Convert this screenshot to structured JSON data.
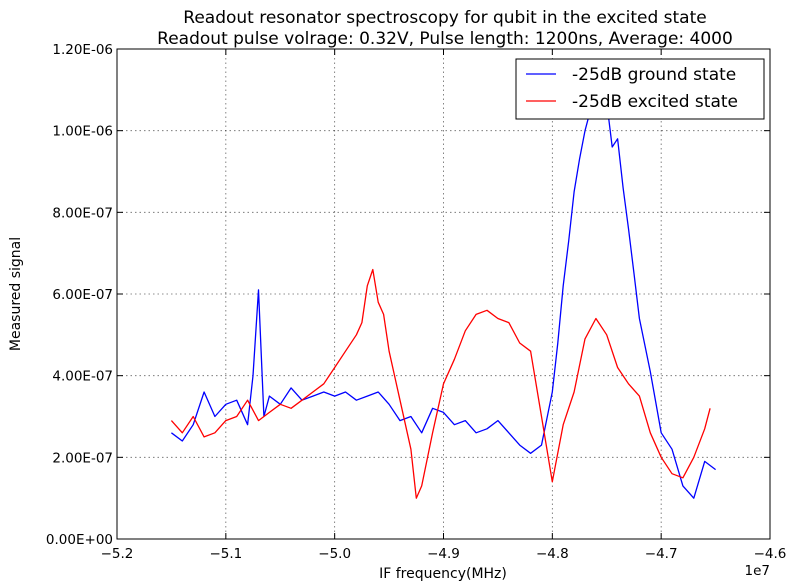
{
  "chart_data": {
    "type": "line",
    "title": "Readout resonator spectroscopy for qubit in the excited state",
    "subtitle": "Readout pulse volrage: 0.32V, Pulse length: 1200ns, Average: 4000",
    "xlabel": "IF frequency(MHz)",
    "ylabel": "Measured signal",
    "x_offset_label": "1e7",
    "xlim": [
      -5.2,
      -4.6
    ],
    "ylim": [
      0,
      1.2e-06
    ],
    "x_ticks": [
      -5.2,
      -5.1,
      -5.0,
      -4.9,
      -4.8,
      -4.7,
      -4.6
    ],
    "x_tick_labels": [
      "−5.2",
      "−5.1",
      "−5.0",
      "−4.9",
      "−4.8",
      "−4.7",
      "−4.6"
    ],
    "y_ticks": [
      0,
      2e-07,
      4e-07,
      6e-07,
      8e-07,
      1e-06,
      1.2e-06
    ],
    "y_tick_labels": [
      "0.00E+00",
      "2.00E-07",
      "4.00E-07",
      "6.00E-07",
      "8.00E-07",
      "1.00E-06",
      "1.20E-06"
    ],
    "grid": true,
    "legend_position": "top-right",
    "series": [
      {
        "name": "-25dB ground state",
        "color": "#0000ff",
        "x": [
          -5.15,
          -5.14,
          -5.13,
          -5.12,
          -5.11,
          -5.1,
          -5.09,
          -5.08,
          -5.075,
          -5.07,
          -5.065,
          -5.06,
          -5.05,
          -5.04,
          -5.03,
          -5.02,
          -5.01,
          -5.0,
          -4.99,
          -4.98,
          -4.97,
          -4.96,
          -4.95,
          -4.94,
          -4.93,
          -4.92,
          -4.91,
          -4.9,
          -4.89,
          -4.88,
          -4.87,
          -4.86,
          -4.85,
          -4.84,
          -4.83,
          -4.82,
          -4.81,
          -4.8,
          -4.795,
          -4.79,
          -4.785,
          -4.78,
          -4.775,
          -4.77,
          -4.765,
          -4.76,
          -4.755,
          -4.75,
          -4.745,
          -4.74,
          -4.735,
          -4.73,
          -4.725,
          -4.72,
          -4.71,
          -4.7,
          -4.69,
          -4.68,
          -4.67,
          -4.66,
          -4.65
        ],
        "y": [
          2.6e-07,
          2.4e-07,
          2.8e-07,
          3.6e-07,
          3e-07,
          3.3e-07,
          3.4e-07,
          2.8e-07,
          4e-07,
          6.1e-07,
          3e-07,
          3.5e-07,
          3.3e-07,
          3.7e-07,
          3.4e-07,
          3.5e-07,
          3.6e-07,
          3.5e-07,
          3.6e-07,
          3.4e-07,
          3.5e-07,
          3.6e-07,
          3.3e-07,
          2.9e-07,
          3e-07,
          2.6e-07,
          3.2e-07,
          3.1e-07,
          2.8e-07,
          2.9e-07,
          2.6e-07,
          2.7e-07,
          2.9e-07,
          2.6e-07,
          2.3e-07,
          2.1e-07,
          2.3e-07,
          3.6e-07,
          4.8e-07,
          6.2e-07,
          7.3e-07,
          8.5e-07,
          9.3e-07,
          1e-06,
          1.05e-06,
          1.08e-06,
          1.03e-06,
          1.07e-06,
          9.6e-07,
          9.8e-07,
          8.6e-07,
          7.6e-07,
          6.5e-07,
          5.4e-07,
          4.1e-07,
          2.6e-07,
          2.2e-07,
          1.3e-07,
          1e-07,
          1.9e-07,
          1.7e-07
        ]
      },
      {
        "name": "-25dB excited state",
        "color": "#ff0000",
        "x": [
          -5.15,
          -5.14,
          -5.13,
          -5.12,
          -5.11,
          -5.1,
          -5.09,
          -5.08,
          -5.07,
          -5.06,
          -5.05,
          -5.04,
          -5.03,
          -5.02,
          -5.01,
          -5.0,
          -4.99,
          -4.98,
          -4.975,
          -4.97,
          -4.965,
          -4.96,
          -4.955,
          -4.95,
          -4.94,
          -4.93,
          -4.925,
          -4.92,
          -4.91,
          -4.9,
          -4.89,
          -4.88,
          -4.87,
          -4.86,
          -4.85,
          -4.84,
          -4.83,
          -4.82,
          -4.81,
          -4.8,
          -4.79,
          -4.78,
          -4.77,
          -4.76,
          -4.75,
          -4.74,
          -4.73,
          -4.72,
          -4.71,
          -4.7,
          -4.69,
          -4.68,
          -4.67,
          -4.66,
          -4.655
        ],
        "y": [
          2.9e-07,
          2.6e-07,
          3e-07,
          2.5e-07,
          2.6e-07,
          2.9e-07,
          3e-07,
          3.4e-07,
          2.9e-07,
          3.1e-07,
          3.3e-07,
          3.2e-07,
          3.4e-07,
          3.6e-07,
          3.8e-07,
          4.2e-07,
          4.6e-07,
          5e-07,
          5.3e-07,
          6.2e-07,
          6.6e-07,
          5.8e-07,
          5.5e-07,
          4.6e-07,
          3.4e-07,
          2.2e-07,
          1e-07,
          1.3e-07,
          2.6e-07,
          3.8e-07,
          4.4e-07,
          5.1e-07,
          5.5e-07,
          5.6e-07,
          5.4e-07,
          5.3e-07,
          4.8e-07,
          4.6e-07,
          3e-07,
          1.4e-07,
          2.8e-07,
          3.6e-07,
          4.9e-07,
          5.4e-07,
          5e-07,
          4.2e-07,
          3.8e-07,
          3.5e-07,
          2.6e-07,
          2e-07,
          1.6e-07,
          1.5e-07,
          2e-07,
          2.7e-07,
          3.2e-07
        ]
      }
    ]
  }
}
